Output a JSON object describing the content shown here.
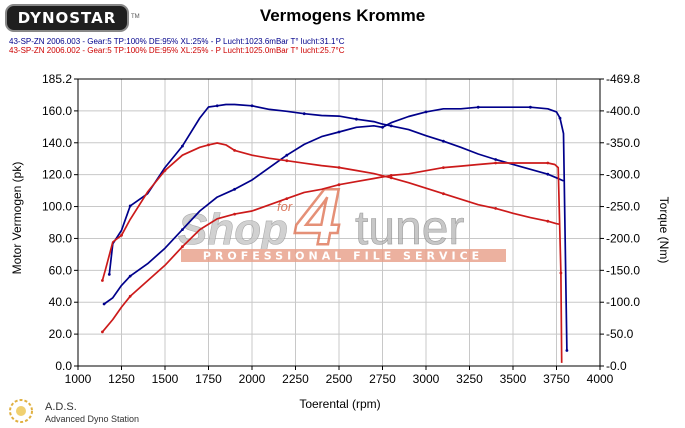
{
  "header": {
    "logo_text": "DYNOSTAR",
    "logo_tm": "TM",
    "title": "Vermogens Kromme",
    "run1": "43-SP-ZN 2006.003 - Gear:5 TP:100% DE:95% XL:25%    - P Lucht:1023.6mBar T° lucht:31.1°C",
    "run2": "43-SP-ZN 2006.002 - Gear:5 TP:100% DE:95% XL:25%    - P Lucht:1025.0mBar T° lucht:25.7°C"
  },
  "watermark": {
    "text1": "Shop",
    "text_for": "for",
    "text4": "4",
    "text_tuner": "tuner",
    "tagline": "PROFESSIONAL FILE SERVICE"
  },
  "footer": {
    "ads": "A.D.S.",
    "subtitle": "Advanced Dyno Station"
  },
  "colors": {
    "run1": "#00008b",
    "run2": "#cc1a1a",
    "grid": "#c8c8c8",
    "watermark": "#e0785a"
  },
  "chart_data": {
    "type": "line",
    "xlabel": "Toerental (rpm)",
    "ylabel_left": "Motor Vermogen (pk)",
    "ylabel_right": "Torque (Nm)",
    "xlim": [
      1000,
      4000
    ],
    "x_ticks": [
      1000,
      1250,
      1500,
      1750,
      2000,
      2250,
      2500,
      2750,
      3000,
      3250,
      3500,
      3750,
      4000
    ],
    "ylim_left": [
      0.0,
      185.2
    ],
    "ylim_right": [
      0.0,
      469.8
    ],
    "left_tick_labels": [
      "0.0",
      "20.0",
      "40.0",
      "60.0",
      "80.0",
      "100.0",
      "120.0",
      "140.0",
      "160.0",
      "185.2"
    ],
    "right_tick_labels": [
      "0.0",
      "50.0",
      "100.0",
      "150.0",
      "200.0",
      "250.0",
      "300.0",
      "350.0",
      "400.0",
      "469.8"
    ],
    "grid": true,
    "series": [
      {
        "id": "run1_torque",
        "axis": "right",
        "run": 1,
        "x": [
          1180,
          1200,
          1250,
          1300,
          1400,
          1500,
          1600,
          1700,
          1750,
          1800,
          1850,
          1900,
          2000,
          2100,
          2200,
          2300,
          2400,
          2500,
          2600,
          2700,
          2750,
          2800,
          2900,
          3000,
          3100,
          3200,
          3300,
          3400,
          3500,
          3600,
          3700,
          3750,
          3790
        ],
        "y": [
          150,
          200,
          222,
          262,
          282,
          325,
          360,
          406,
          424,
          426,
          428,
          428,
          426,
          420,
          417,
          413,
          410,
          409,
          404,
          400,
          396,
          393,
          387,
          377,
          368,
          358,
          347,
          338,
          330,
          322,
          314,
          308,
          303
        ]
      },
      {
        "id": "run1_power",
        "axis": "left",
        "run": 1,
        "x": [
          1150,
          1200,
          1250,
          1300,
          1400,
          1500,
          1600,
          1700,
          1800,
          1900,
          2000,
          2100,
          2200,
          2300,
          2400,
          2500,
          2600,
          2700,
          2750,
          2800,
          2900,
          3000,
          3100,
          3200,
          3300,
          3400,
          3500,
          3600,
          3700,
          3750,
          3770,
          3790,
          3800,
          3810
        ],
        "y": [
          40,
          44,
          52,
          58,
          66,
          76,
          88,
          100,
          109,
          114,
          120,
          128,
          136,
          143,
          148,
          151,
          154,
          155,
          154,
          157,
          161,
          164,
          166,
          166,
          167,
          167,
          167,
          167,
          166,
          164,
          160,
          150,
          80,
          10
        ]
      },
      {
        "id": "run2_torque",
        "axis": "right",
        "run": 2,
        "x": [
          1140,
          1160,
          1200,
          1250,
          1300,
          1400,
          1500,
          1600,
          1700,
          1750,
          1800,
          1850,
          1900,
          2000,
          2100,
          2200,
          2300,
          2400,
          2500,
          2600,
          2700,
          2800,
          2900,
          3000,
          3100,
          3200,
          3300,
          3400,
          3500,
          3600,
          3700,
          3750,
          3770
        ],
        "y": [
          140,
          160,
          203,
          214,
          240,
          285,
          320,
          345,
          358,
          362,
          365,
          362,
          353,
          345,
          340,
          336,
          332,
          328,
          325,
          320,
          315,
          308,
          300,
          291,
          282,
          273,
          264,
          258,
          250,
          243,
          237,
          233,
          232
        ]
      },
      {
        "id": "run2_power",
        "axis": "left",
        "run": 2,
        "x": [
          1140,
          1200,
          1250,
          1300,
          1400,
          1500,
          1600,
          1700,
          1800,
          1900,
          2000,
          2100,
          2200,
          2300,
          2400,
          2500,
          2600,
          2700,
          2800,
          2900,
          3000,
          3100,
          3200,
          3300,
          3400,
          3500,
          3600,
          3700,
          3740,
          3760,
          3775,
          3780
        ],
        "y": [
          22,
          30,
          38,
          45,
          55,
          65,
          77,
          88,
          95,
          98,
          100,
          104,
          108,
          112,
          114,
          117,
          119,
          121,
          123,
          124,
          126,
          128,
          129,
          130,
          131,
          131,
          131,
          131,
          130,
          128,
          60,
          2
        ]
      }
    ]
  }
}
